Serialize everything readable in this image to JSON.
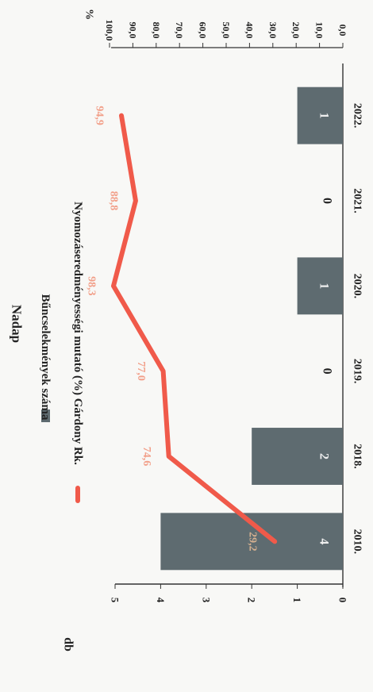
{
  "chart_data": {
    "type": "bar+line",
    "title": "Nadap",
    "categories": [
      "2010.",
      "2018.",
      "2019.",
      "2020.",
      "2021.",
      "2022."
    ],
    "bar_series": {
      "name": "Bűncselekmények száma",
      "values": [
        4,
        2,
        0,
        1,
        0,
        1
      ],
      "value_labels": [
        "4",
        "2",
        "0",
        "1",
        "0",
        "1"
      ],
      "color": "#5e6b70"
    },
    "line_series": {
      "name": "Nyomozáseredményességi mutató (%) Gárdony Rk.",
      "values": [
        29.2,
        74.6,
        77.0,
        98.3,
        88.8,
        94.9
      ],
      "value_labels": [
        "29,2",
        "74,6",
        "77,0",
        "98,3",
        "88,8",
        "94,9"
      ],
      "color": "#f05a4a"
    },
    "left_axis": {
      "label": "db",
      "range": [
        0,
        5
      ],
      "ticks": [
        "0",
        "1",
        "2",
        "3",
        "4",
        "5"
      ]
    },
    "right_axis": {
      "label": "%",
      "range": [
        0,
        100
      ],
      "ticks": [
        "0,0",
        "10,0",
        "20,0",
        "30,0",
        "40,0",
        "50,0",
        "60,0",
        "70,0",
        "80,0",
        "90,0",
        "100,0"
      ]
    },
    "legend_placement": "top",
    "grid": false,
    "orientation": "rotated 90° clockwise"
  }
}
